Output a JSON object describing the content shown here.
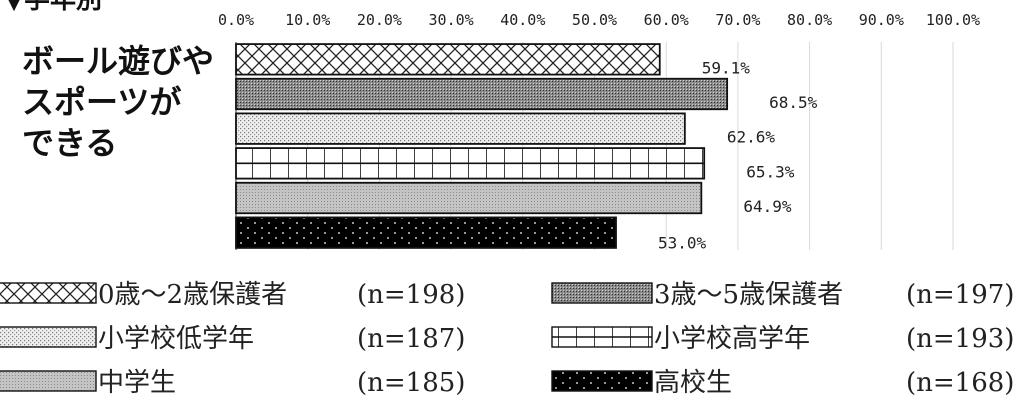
{
  "heading": "▼学年別",
  "chart_data": {
    "type": "bar",
    "orientation": "horizontal",
    "category_lines": [
      "ボール遊びや",
      "スポーツが",
      "できる"
    ],
    "ticks": [
      "0.0%",
      "10.0%",
      "20.0%",
      "30.0%",
      "40.0%",
      "50.0%",
      "60.0%",
      "70.0%",
      "80.0%",
      "90.0%",
      "100.0%"
    ],
    "xlim": [
      0,
      100
    ],
    "grid": true,
    "legend_position": "bottom",
    "series": [
      {
        "name": "0歳～2歳保護者",
        "n": "(n=198)",
        "value": 59.1,
        "label": "59.1%",
        "pattern": "crosshatch"
      },
      {
        "name": "3歳～5歳保護者",
        "n": "(n=197)",
        "value": 68.5,
        "label": "68.5%",
        "pattern": "dense-gray"
      },
      {
        "name": "小学校低学年",
        "n": "(n=187)",
        "value": 62.6,
        "label": "62.6%",
        "pattern": "light-dots"
      },
      {
        "name": "小学校高学年",
        "n": "(n=193)",
        "value": 65.3,
        "label": "65.3%",
        "pattern": "grid"
      },
      {
        "name": "中学生",
        "n": "(n=185)",
        "value": 64.9,
        "label": "64.9%",
        "pattern": "medium-gray"
      },
      {
        "name": "高校生",
        "n": "(n=168)",
        "value": 53.0,
        "label": "53.0%",
        "pattern": "black-dots"
      }
    ]
  }
}
